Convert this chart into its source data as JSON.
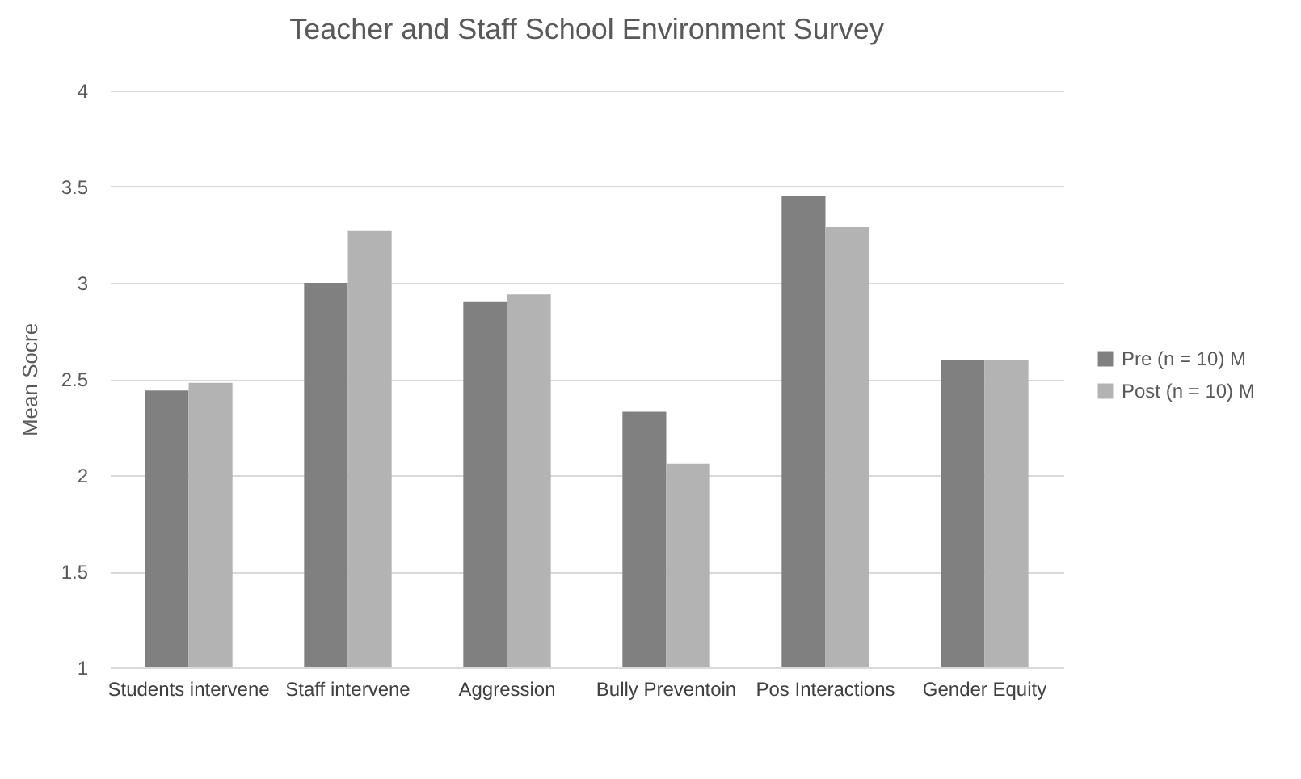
{
  "chart_data": {
    "type": "bar",
    "title": "Teacher and Staff School Environment Survey",
    "ylabel": "Mean Socre",
    "categories": [
      "Students intervene",
      "Staff intervene",
      "Aggression",
      "Bully Preventoin",
      "Pos Interactions",
      "Gender Equity"
    ],
    "series": [
      {
        "name": "Pre (n = 10) M",
        "color": "#808080",
        "values": [
          2.44,
          3.0,
          2.9,
          2.33,
          3.45,
          2.6
        ]
      },
      {
        "name": "Post (n = 10) M",
        "color": "#b3b3b3",
        "values": [
          2.48,
          3.27,
          2.94,
          2.06,
          3.29,
          2.6
        ]
      }
    ],
    "ylim": [
      1,
      4
    ],
    "yticks": [
      1,
      1.5,
      2,
      2.5,
      3,
      3.5,
      4
    ],
    "grid": "y",
    "legend": "right"
  }
}
